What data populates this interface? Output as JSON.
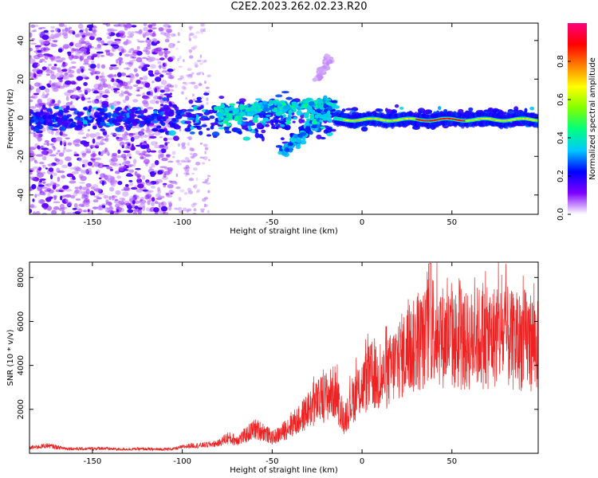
{
  "title": "C2E2.2023.262.02.23.R20",
  "colorbar": {
    "label": "Normalized spectral amplitude",
    "ticks": [
      0.0,
      0.2,
      0.4,
      0.6,
      0.8
    ],
    "tick_labels": [
      "0.0",
      "0.2",
      "0.4",
      "0.6",
      "0.8"
    ],
    "stops": [
      "#ffffff",
      "#7f00ff",
      "#0000ff",
      "#00c8ff",
      "#00ff80",
      "#80ff00",
      "#ffff00",
      "#ff8000",
      "#ff0000",
      "#ff0080"
    ]
  },
  "chart_data": [
    {
      "type": "heatmap",
      "xlabel": "Height of straight line (km)",
      "ylabel": "Frequency (Hz)",
      "xlim": [
        -185,
        98
      ],
      "ylim": [
        -50,
        49
      ],
      "xticks": [
        -150,
        -100,
        -50,
        0,
        50
      ],
      "xtick_labels": [
        "-150",
        "-100",
        "-50",
        "0",
        "50"
      ],
      "yticks": [
        -40,
        -20,
        0,
        20,
        40
      ],
      "ytick_labels": [
        "-40",
        "-20",
        "0",
        "20",
        "40"
      ],
      "grid": false,
      "colormap": "white-purple-blue-cyan-green-yellow-orange-red-magenta",
      "features": [
        {
          "name": "noise",
          "x_range": [
            -185,
            -105
          ],
          "y_range": [
            -50,
            49
          ],
          "level": 0.15
        },
        {
          "name": "sparse-noise",
          "x_range": [
            -105,
            -85
          ],
          "y_range": [
            -50,
            49
          ],
          "level": 0.06
        },
        {
          "name": "central-band",
          "x_range": [
            -185,
            98
          ],
          "y_center": 0,
          "level": 0.25
        },
        {
          "name": "upper-streak",
          "x_from": [
            -80,
            3
          ],
          "x_to": [
            -18,
            8
          ],
          "level": 0.4
        },
        {
          "name": "lower-streak",
          "x_from": [
            -45,
            -18
          ],
          "x_to": [
            -15,
            6
          ],
          "level": 0.35
        },
        {
          "name": "faint-upper-streak",
          "x_from": [
            -25,
            20
          ],
          "x_to": [
            -18,
            32
          ],
          "level": 0.05
        },
        {
          "name": "red-band",
          "x_range": [
            -15,
            98
          ],
          "y_center": -1,
          "level": 0.85
        }
      ]
    },
    {
      "type": "line",
      "xlabel": "Height of straight line (km)",
      "ylabel": "SNR (10 * v/v)",
      "xlim": [
        -185,
        98
      ],
      "ylim": [
        0,
        8700
      ],
      "xticks": [
        -150,
        -100,
        -50,
        0,
        50
      ],
      "xtick_labels": [
        "-150",
        "-100",
        "-50",
        "0",
        "50"
      ],
      "yticks": [
        2000,
        4000,
        6000,
        8000
      ],
      "ytick_labels": [
        "2000",
        "4000",
        "6000",
        "8000"
      ],
      "grid": false,
      "series": [
        {
          "color": "#ee2222",
          "x": [
            -185,
            -175,
            -165,
            -155,
            -145,
            -135,
            -125,
            -115,
            -105,
            -100,
            -95,
            -90,
            -85,
            -80,
            -75,
            -70,
            -65,
            -60,
            -55,
            -50,
            -45,
            -40,
            -35,
            -30,
            -25,
            -20,
            -15,
            -10,
            -5,
            0,
            5,
            10,
            15,
            20,
            25,
            30,
            35,
            40,
            45,
            50,
            55,
            60,
            65,
            70,
            75,
            80,
            85,
            90,
            95,
            98
          ],
          "y": [
            250,
            350,
            220,
            200,
            230,
            180,
            200,
            180,
            200,
            280,
            350,
            360,
            400,
            450,
            700,
            600,
            800,
            1100,
            1000,
            700,
            900,
            1300,
            1500,
            2000,
            2300,
            2600,
            2800,
            1500,
            2500,
            3000,
            3500,
            3300,
            3700,
            4300,
            4600,
            4900,
            5200,
            5800,
            5300,
            5200,
            5000,
            5100,
            5300,
            5200,
            5400,
            5300,
            5000,
            5200,
            5100,
            4900
          ]
        }
      ]
    }
  ]
}
